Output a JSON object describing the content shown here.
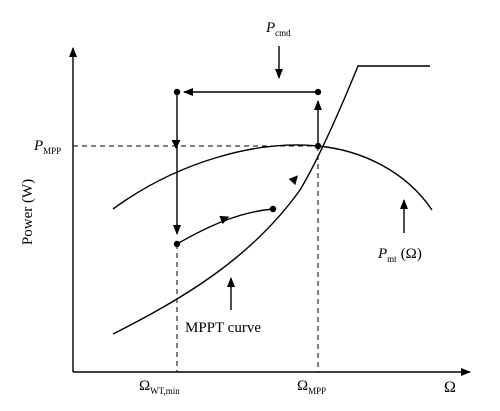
{
  "labels": {
    "y_axis": "Power (W)",
    "x_axis": "Ω",
    "p_mpp_base": "P",
    "p_mpp_sub": "MPP",
    "p_cmd_base": "P",
    "p_cmd_sub": "cmd",
    "p_mt_base": "P",
    "p_mt_sub": "mt",
    "p_mt_arg": "(Ω)",
    "mppt_curve": "MPPT curve",
    "omega_min_base": "Ω",
    "omega_min_sub": "WT,min",
    "omega_mpp_base": "Ω",
    "omega_mpp_sub": "MPP"
  }
}
